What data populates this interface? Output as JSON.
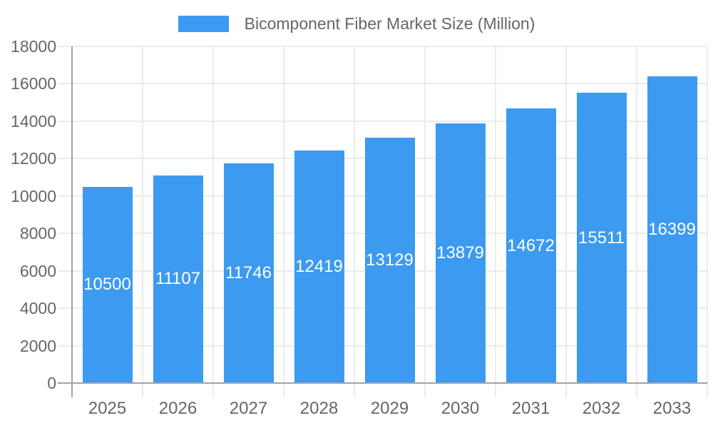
{
  "legend": {
    "label": "Bicomponent Fiber Market Size (Million)"
  },
  "chart_data": {
    "type": "bar",
    "title": "Bicomponent Fiber Market Size (Million)",
    "series_name": "Bicomponent Fiber Market Size (Million)",
    "categories": [
      "2025",
      "2026",
      "2027",
      "2028",
      "2029",
      "2030",
      "2031",
      "2032",
      "2033"
    ],
    "values": [
      10500,
      11107,
      11746,
      12419,
      13129,
      13879,
      14672,
      15511,
      16399
    ],
    "data_labels": true,
    "data_label_position": "inside-middle",
    "xlabel": "",
    "ylabel": "",
    "ylim": [
      0,
      18000
    ],
    "y_ticks": [
      0,
      2000,
      4000,
      6000,
      8000,
      10000,
      12000,
      14000,
      16000,
      18000
    ],
    "grid": true,
    "legend_position": "top",
    "colors": {
      "bar": "#3c9af0",
      "bar_label_text": "#ffffff",
      "axis_text": "#666666",
      "gridline": "#ebebeb",
      "axis_line": "#a3a3a3",
      "background": "#ffffff"
    }
  }
}
